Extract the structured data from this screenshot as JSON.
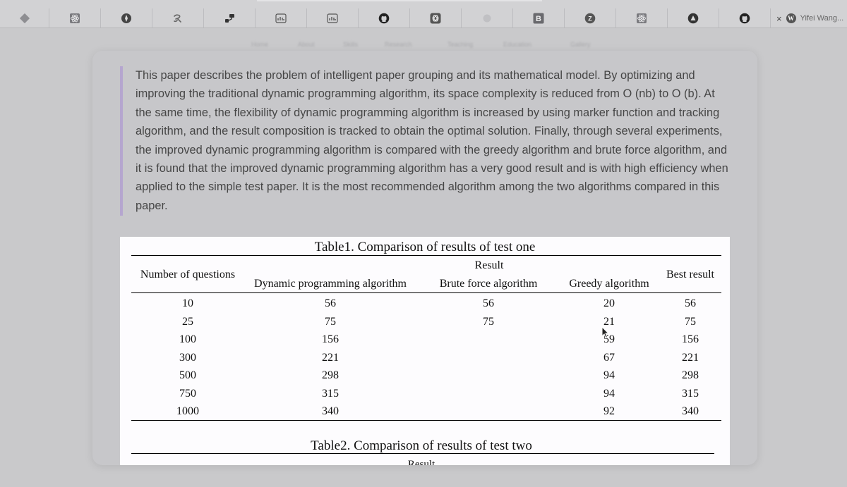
{
  "tabs": [
    {
      "icon": "diamond-icon"
    },
    {
      "icon": "react-icon"
    },
    {
      "icon": "circle-logo-icon"
    },
    {
      "icon": "script-r-icon"
    },
    {
      "icon": "paint-roller-icon"
    },
    {
      "icon": "chart-frame-icon"
    },
    {
      "icon": "chart-frame-icon"
    },
    {
      "icon": "github-icon"
    },
    {
      "icon": "openai-icon"
    },
    {
      "icon": "gray-dot-icon"
    },
    {
      "icon": "b-logo-icon",
      "text": "B"
    },
    {
      "icon": "z-logo-icon",
      "text": "Z"
    },
    {
      "icon": "react-icon"
    },
    {
      "icon": "triangle-logo-icon"
    },
    {
      "icon": "github-icon"
    }
  ],
  "active_tab": {
    "close": "×",
    "logo": "W",
    "title": "Yifei Wang..."
  },
  "nav": {
    "home": "Home",
    "about": "About",
    "skills": "Skills",
    "research": "Research",
    "teaching": "Teaching",
    "education": "Education",
    "gallery": "Gallery"
  },
  "abstract": "This paper describes the problem of intelligent paper grouping and its mathematical model. By optimizing and improving the traditional dynamic programming algorithm, its space complexity is reduced from O (nb) to O (b). At the same time, the flexibility of dynamic programming algorithm is increased by using marker function and tracking algorithm, and the result composition is tracked to obtain the optimal solution. Finally, through several experiments, the improved dynamic programming algorithm is compared with the greedy algorithm and brute force algorithm, and it is found that the improved dynamic programming algorithm has a very good result and is with high efficiency when applied to the simple test paper. It is the most recommended algorithm among the two algorithms compared in this paper.",
  "table1": {
    "title": "Table1. Comparison of results of test one",
    "result_header": "Result",
    "col_questions": "Number of questions",
    "col_dp": "Dynamic programming algorithm",
    "col_brute": "Brute force algorithm",
    "col_greedy": "Greedy algorithm",
    "col_best": "Best result",
    "rows": [
      [
        "10",
        "56",
        "56",
        "20",
        "56"
      ],
      [
        "25",
        "75",
        "75",
        "21",
        "75"
      ],
      [
        "100",
        "156",
        "",
        "59",
        "156"
      ],
      [
        "300",
        "221",
        "",
        "67",
        "221"
      ],
      [
        "500",
        "298",
        "",
        "94",
        "298"
      ],
      [
        "750",
        "315",
        "",
        "94",
        "315"
      ],
      [
        "1000",
        "340",
        "",
        "92",
        "340"
      ]
    ]
  },
  "table2": {
    "title": "Table2. Comparison of results of test two",
    "result_header": "Result"
  }
}
